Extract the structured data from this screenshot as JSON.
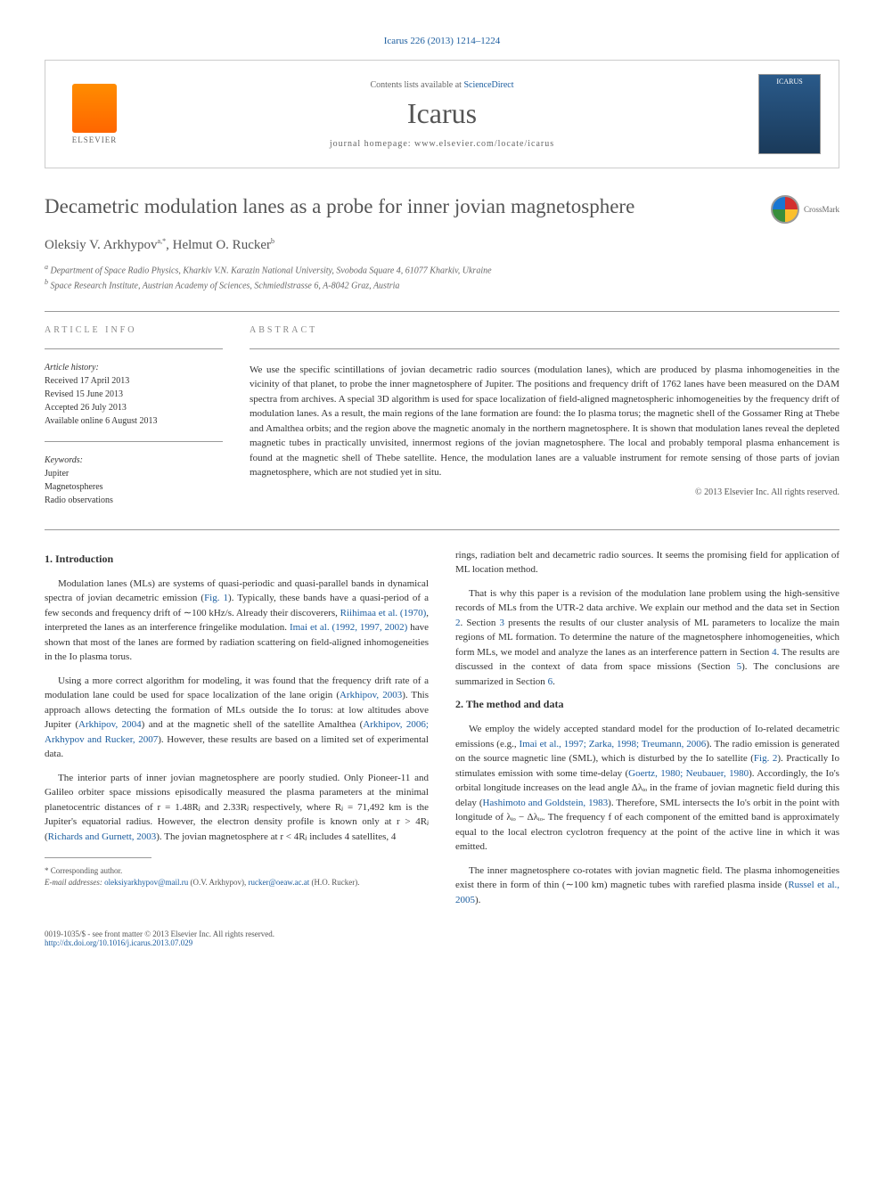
{
  "header": {
    "citation": "Icarus 226 (2013) 1214–1224",
    "contents_prefix": "Contents lists available at ",
    "contents_link": "ScienceDirect",
    "journal": "Icarus",
    "homepage_prefix": "journal homepage: ",
    "homepage_url": "www.elsevier.com/locate/icarus",
    "elsevier": "ELSEVIER",
    "cover_title": "ICARUS"
  },
  "article": {
    "title": "Decametric modulation lanes as a probe for inner jovian magnetosphere",
    "crossmark": "CrossMark",
    "authors": "Oleksiy V. Arkhypov",
    "author_sup_a": "a,*",
    "author2": ", Helmut O. Rucker",
    "author_sup_b": "b",
    "affil_a": "Department of Space Radio Physics, Kharkiv V.N. Karazin National University, Svoboda Square 4, 61077 Kharkiv, Ukraine",
    "affil_b": "Space Research Institute, Austrian Academy of Sciences, Schmiedlstrasse 6, A-8042 Graz, Austria"
  },
  "info": {
    "heading": "ARTICLE INFO",
    "history_heading": "Article history:",
    "received": "Received 17 April 2013",
    "revised": "Revised 15 June 2013",
    "accepted": "Accepted 26 July 2013",
    "online": "Available online 6 August 2013",
    "keywords_heading": "Keywords:",
    "kw1": "Jupiter",
    "kw2": "Magnetospheres",
    "kw3": "Radio observations"
  },
  "abstract": {
    "heading": "ABSTRACT",
    "text": "We use the specific scintillations of jovian decametric radio sources (modulation lanes), which are produced by plasma inhomogeneities in the vicinity of that planet, to probe the inner magnetosphere of Jupiter. The positions and frequency drift of 1762 lanes have been measured on the DAM spectra from archives. A special 3D algorithm is used for space localization of field-aligned magnetospheric inhomogeneities by the frequency drift of modulation lanes. As a result, the main regions of the lane formation are found: the Io plasma torus; the magnetic shell of the Gossamer Ring at Thebe and Amalthea orbits; and the region above the magnetic anomaly in the northern magnetosphere. It is shown that modulation lanes reveal the depleted magnetic tubes in practically unvisited, innermost regions of the jovian magnetosphere. The local and probably temporal plasma enhancement is found at the magnetic shell of Thebe satellite. Hence, the modulation lanes are a valuable instrument for remote sensing of those parts of jovian magnetosphere, which are not studied yet in situ.",
    "copyright": "© 2013 Elsevier Inc. All rights reserved."
  },
  "body": {
    "sec1_heading": "1. Introduction",
    "p1a": "Modulation lanes (MLs) are systems of quasi-periodic and quasi-parallel bands in dynamical spectra of jovian decametric emission (",
    "p1_fig": "Fig. 1",
    "p1b": "). Typically, these bands have a quasi-period of a few seconds and frequency drift of ∼100 kHz/s. Already their discoverers, ",
    "p1_ref1": "Riihimaa et al. (1970)",
    "p1c": ", interpreted the lanes as an interference fringelike modulation. ",
    "p1_ref2": "Imai et al. (1992, 1997, 2002)",
    "p1d": " have shown that most of the lanes are formed by radiation scattering on field-aligned inhomogeneities in the Io plasma torus.",
    "p2a": "Using a more correct algorithm for modeling, it was found that the frequency drift rate of a modulation lane could be used for space localization of the lane origin (",
    "p2_ref1": "Arkhipov, 2003",
    "p2b": "). This approach allows detecting the formation of MLs outside the Io torus: at low altitudes above Jupiter (",
    "p2_ref2": "Arkhipov, 2004",
    "p2c": ") and at the magnetic shell of the satellite Amalthea (",
    "p2_ref3": "Arkhipov, 2006; Arkhypov and Rucker, 2007",
    "p2d": "). However, these results are based on a limited set of experimental data.",
    "p3a": "The interior parts of inner jovian magnetosphere are poorly studied. Only Pioneer-11 and Galileo orbiter space missions episodically measured the plasma parameters at the minimal planetocentric distances of r = 1.48Rⱼ and 2.33Rⱼ respectively, where Rⱼ = 71,492 km is the Jupiter's equatorial radius. However, the electron density profile is known only at r > 4Rⱼ (",
    "p3_ref1": "Richards and Gurnett, 2003",
    "p3b": "). The jovian magnetosphere at r < 4Rⱼ includes 4 satellites, 4",
    "p4": "rings, radiation belt and decametric radio sources. It seems the promising field for application of ML location method.",
    "p5a": "That is why this paper is a revision of the modulation lane problem using the high-sensitive records of MLs from the UTR-2 data archive. We explain our method and the data set in Section ",
    "p5_ref1": "2",
    "p5b": ". Section ",
    "p5_ref2": "3",
    "p5c": " presents the results of our cluster analysis of ML parameters to localize the main regions of ML formation. To determine the nature of the magnetosphere inhomogeneities, which form MLs, we model and analyze the lanes as an interference pattern in Section ",
    "p5_ref3": "4",
    "p5d": ". The results are discussed in the context of data from space missions (Section ",
    "p5_ref4": "5",
    "p5e": "). The conclusions are summarized in Section ",
    "p5_ref5": "6",
    "p5f": ".",
    "sec2_heading": "2. The method and data",
    "p6a": "We employ the widely accepted standard model for the production of Io-related decametric emissions (e.g., ",
    "p6_ref1": "Imai et al., 1997; Zarka, 1998; Treumann, 2006",
    "p6b": "). The radio emission is generated on the source magnetic line (SML), which is disturbed by the Io satellite (",
    "p6_fig": "Fig. 2",
    "p6c": "). Practically Io stimulates emission with some time-delay (",
    "p6_ref2": "Goertz, 1980; Neubauer, 1980",
    "p6d": "). Accordingly, the Io's orbital longitude increases on the lead angle Δλᵢₒ in the frame of jovian magnetic field during this delay (",
    "p6_ref3": "Hashimoto and Goldstein, 1983",
    "p6e": "). Therefore, SML intersects the Io's orbit in the point with longitude of λᵢₒ − Δλᵢₒ. The frequency f of each component of the emitted band is approximately equal to the local electron cyclotron frequency at the point of the active line in which it was emitted.",
    "p7a": "The inner magnetosphere co-rotates with jovian magnetic field. The plasma inhomogeneities exist there in form of thin (∼100 km) magnetic tubes with rarefied plasma inside (",
    "p7_ref1": "Russel et al., 2005",
    "p7b": ")."
  },
  "footer": {
    "corresp": "* Corresponding author.",
    "email_label": "E-mail addresses: ",
    "email1": "oleksiyarkhypov@mail.ru",
    "email1_name": " (O.V. Arkhypov), ",
    "email2": "rucker@oeaw.ac.at",
    "email2_name": " (H.O. Rucker).",
    "issn": "0019-1035/$ - see front matter © 2013 Elsevier Inc. All rights reserved.",
    "doi": "http://dx.doi.org/10.1016/j.icarus.2013.07.029"
  },
  "colors": {
    "link": "#1a5c9e",
    "text": "#333333",
    "muted": "#666666",
    "border": "#cccccc"
  }
}
